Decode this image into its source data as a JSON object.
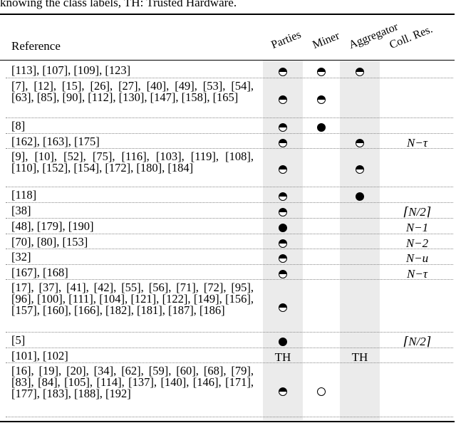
{
  "caption": "knowing the class labels, TH: Trusted Hardware.",
  "headers": {
    "reference": "Reference",
    "parties": "Parties",
    "miner": "Miner",
    "aggregator": "Aggregator",
    "coll_res": "Coll. Res."
  },
  "rows": [
    {
      "ref": "[113], [107], [109], [123]",
      "parties": "half",
      "miner": "half",
      "aggregator": "half",
      "coll": ""
    },
    {
      "ref": "[7], [12], [15], [26], [27], [40], [49], [53], [54], [63], [85], [90], [112], [130], [147], [158], [165]",
      "parties": "half",
      "miner": "half",
      "aggregator": "",
      "coll": ""
    },
    {
      "ref": "[8]",
      "parties": "half",
      "miner": "full",
      "aggregator": "",
      "coll": ""
    },
    {
      "ref": "[162], [163], [175]",
      "parties": "half",
      "miner": "",
      "aggregator": "half",
      "coll": "N−τ"
    },
    {
      "ref": "[9], [10], [52], [75], [116], [103], [119], [108], [110], [152], [154], [172], [180], [184]",
      "parties": "half",
      "miner": "",
      "aggregator": "half",
      "coll": ""
    },
    {
      "ref": "[118]",
      "parties": "half",
      "miner": "",
      "aggregator": "full",
      "coll": ""
    },
    {
      "ref": "[38]",
      "parties": "half",
      "miner": "",
      "aggregator": "",
      "coll": "⌈N/2⌉"
    },
    {
      "ref": "[48], [179], [190]",
      "parties": "full",
      "miner": "",
      "aggregator": "",
      "coll": "N−1"
    },
    {
      "ref": "[70], [80], [153]",
      "parties": "half",
      "miner": "",
      "aggregator": "",
      "coll": "N−2"
    },
    {
      "ref": "[32]",
      "parties": "half",
      "miner": "",
      "aggregator": "",
      "coll": "N−u"
    },
    {
      "ref": "[167], [168]",
      "parties": "half",
      "miner": "",
      "aggregator": "",
      "coll": "N−τ"
    },
    {
      "ref": "[17], [37], [41], [42], [55], [56], [71], [72], [95], [96], [100], [111], [104], [121], [122], [149], [156], [157], [160], [166], [182], [181], [187], [186]",
      "parties": "half",
      "miner": "",
      "aggregator": "",
      "coll": ""
    },
    {
      "ref": "[5]",
      "parties": "full",
      "miner": "",
      "aggregator": "",
      "coll": "⌈N/2⌉"
    },
    {
      "ref": "[101], [102]",
      "parties": "TH",
      "miner": "",
      "aggregator": "TH",
      "coll": ""
    },
    {
      "ref": "[16], [19], [20], [34], [62], [59], [60], [68], [79], [83], [84], [105], [114], [137], [140], [146], [171], [177], [183], [188], [192]",
      "parties": "half",
      "miner": "empty",
      "aggregator": "",
      "coll": ""
    }
  ]
}
